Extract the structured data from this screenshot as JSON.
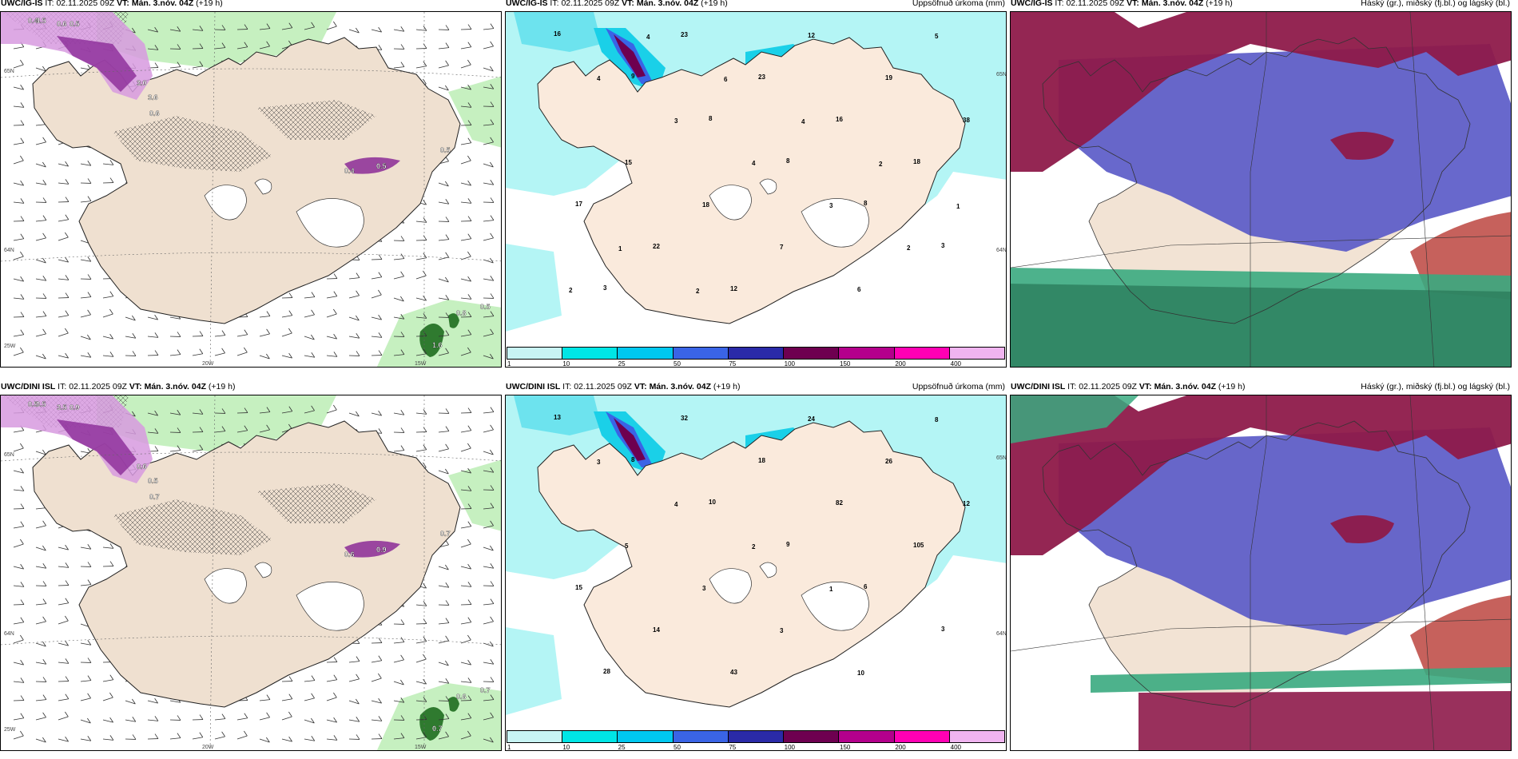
{
  "rows": [
    {
      "model": "UWC/IG-IS",
      "it_label": "IT:",
      "it": "02.11.2025 09Z",
      "vt_label": "VT:",
      "vt": "Mán. 3.nóv. 04Z",
      "lead": "(+19 h)"
    },
    {
      "model": "UWC/DINI ISL",
      "it_label": "IT:",
      "it": "02.11.2025 09Z",
      "vt_label": "VT:",
      "vt": "Mán. 3.nóv. 04Z",
      "lead": "(+19 h)"
    }
  ],
  "panel_titles": {
    "precip": "Uppsöfnuð úrkoma (mm)",
    "cloud": "Háský (gr.), miðský (fj.bl.) og lágský (bl.)"
  },
  "axis_labels": {
    "lat65": "65N",
    "lat64": "64N",
    "lon25": "25W",
    "lon20": "20W",
    "lon15": "15W"
  },
  "colorbar": {
    "colors": [
      "#c8f4f4",
      "#00e6e6",
      "#00c8f0",
      "#3a64e6",
      "#2a2aa8",
      "#6e0050",
      "#b4008c",
      "#ff00b4",
      "#f0b4f0"
    ],
    "ticks": [
      "1",
      "10",
      "25",
      "50",
      "75",
      "100",
      "150",
      "200",
      "400"
    ]
  },
  "precip_labels_top": [
    "16",
    "9",
    "8",
    "8",
    "8",
    "3",
    "3",
    "23",
    "23",
    "16",
    "18",
    "17",
    "22",
    "12",
    "12",
    "19",
    "38",
    "15",
    "18",
    "7",
    "6",
    "5",
    "4",
    "3",
    "4",
    "3",
    "2",
    "2",
    "4",
    "6",
    "4",
    "2",
    "1",
    "1",
    "2"
  ],
  "precip_labels_bottom": [
    "13",
    "8",
    "10",
    "9",
    "6",
    "3",
    "28",
    "32",
    "18",
    "82",
    "105",
    "15",
    "14",
    "43",
    "24",
    "26",
    "12",
    "5",
    "3",
    "3",
    "10",
    "8",
    "3",
    "4",
    "2",
    "1"
  ],
  "wind_values_top": [
    "0.4",
    "4.5",
    "0.6",
    "0.5",
    "3.0",
    "3.6",
    "0.6",
    "0.4",
    "0.5",
    "0.5",
    "1.6",
    "0.8",
    "0.5"
  ],
  "wind_values_bottom": [
    "0.5",
    "0.5",
    "3.5",
    "0.9",
    "0.6",
    "0.5",
    "0.7",
    "0.6",
    "0.9",
    "0.7",
    "0.7",
    "0.6",
    "0.7"
  ]
}
